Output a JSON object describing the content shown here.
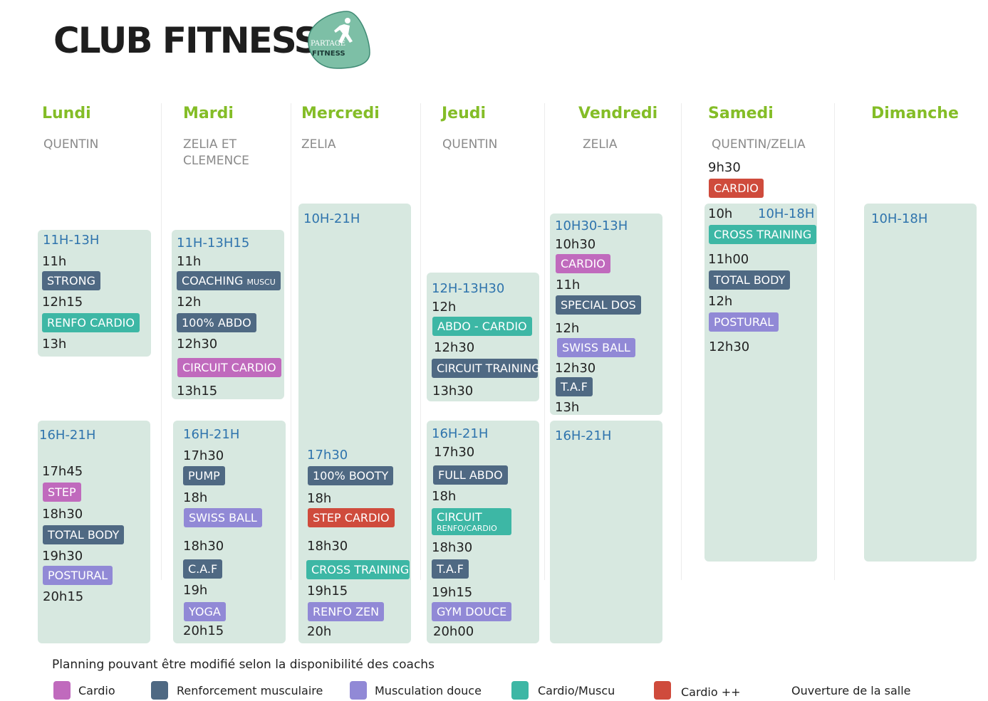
{
  "header": {
    "title": "CLUB FITNESS",
    "logo_text_1": "PARTAGE",
    "logo_text_2": "FITNESS",
    "logo_color": "#7dbfa6"
  },
  "days": {
    "lundi": {
      "name": "Lundi",
      "coach": "QUENTIN"
    },
    "mardi": {
      "name": "Mardi",
      "coach": "ZELIA ET CLEMENCE"
    },
    "mercredi": {
      "name": "Mercredi",
      "coach": "ZELIA"
    },
    "jeudi": {
      "name": "Jeudi",
      "coach": "QUENTIN"
    },
    "vendredi": {
      "name": "Vendredi",
      "coach": "ZELIA"
    },
    "samedi": {
      "name": "Samedi",
      "coach": "QUENTIN/ZELIA"
    },
    "dimanche": {
      "name": "Dimanche"
    }
  },
  "lundi": {
    "am": {
      "hours": "11H-13H",
      "t1": "11h",
      "c1": "STRONG",
      "t2": "12h15",
      "c2": "RENFO CARDIO",
      "t3": "13h"
    },
    "pm": {
      "hours": "16H-21H",
      "t1": "17h45",
      "c1": "STEP",
      "t2": "18h30",
      "c2": "TOTAL BODY",
      "t3": "19h30",
      "c3": "POSTURAL",
      "t4": "20h15"
    }
  },
  "mardi": {
    "am": {
      "hours": "11H-13H15",
      "t1": "11h",
      "c1": "COACHING",
      "c1_small": "MUSCU",
      "t2": "12h",
      "c2": "100% ABDO",
      "t3": "12h30",
      "c3": "CIRCUIT CARDIO",
      "t4": "13h15"
    },
    "pm": {
      "hours": "16H-21H",
      "t1": "17h30",
      "c1": "PUMP",
      "t2": "18h",
      "c2": "SWISS BALL",
      "t3": "18h30",
      "c3": "C.A.F",
      "t4": "19h",
      "c4": "YOGA",
      "t5": "20h15"
    }
  },
  "mercredi": {
    "hours": "10H-21H",
    "pm": {
      "t1": "17h30",
      "c1": "100% BOOTY",
      "t2": "18h",
      "c2": "STEP CARDIO",
      "t3": "18h30",
      "c3": "CROSS TRAINING",
      "t4": "19h15",
      "c4": "RENFO ZEN",
      "t5": "20h"
    }
  },
  "jeudi": {
    "am": {
      "hours": "12H-13H30",
      "t1": "12h",
      "c1": "ABDO - CARDIO",
      "t2": "12h30",
      "c2": "CIRCUIT TRAINING",
      "t3": "13h30"
    },
    "pm": {
      "hours": "16H-21H",
      "t1": "17h30",
      "c1": "FULL ABDO",
      "t2": "18h",
      "c2_l1": "CIRCUIT",
      "c2_l2": "RENFO/CARDIO",
      "t3": "18h30",
      "c3": "T.A.F",
      "t4": "19h15",
      "c4": "GYM DOUCE",
      "t5": "20h00"
    }
  },
  "vendredi": {
    "am": {
      "hours": "10H30-13H",
      "t1": "10h30",
      "c1": "CARDIO",
      "t2": "11h",
      "c2": "SPECIAL DOS",
      "t3": "12h",
      "c3": "SWISS BALL",
      "t4": "12h30",
      "c4": "T.A.F",
      "t5": "13h"
    },
    "pm": {
      "hours": "16H-21H"
    }
  },
  "samedi": {
    "t0": "9h30",
    "c0": "CARDIO",
    "t1": "10h",
    "hours": "10H-18H",
    "c1": "CROSS TRAINING",
    "t2": "11h00",
    "c2": "TOTAL BODY",
    "t3": "12h",
    "c3": "POSTURAL",
    "t4": "12h30"
  },
  "dimanche": {
    "hours": "10H-18H"
  },
  "footer": {
    "note": "Planning pouvant être modifié selon la disponibilité des coachs",
    "legend": [
      {
        "label": "Cardio",
        "color": "#c06abd"
      },
      {
        "label": "Renforcement musculaire",
        "color": "#4f6983"
      },
      {
        "label": "Musculation douce",
        "color": "#9189d6"
      },
      {
        "label": "Cardio/Muscu",
        "color": "#3db7a5"
      },
      {
        "label": "Cardio ++",
        "color": "#cf4b3c"
      }
    ],
    "opening_label": "Ouverture de la salle"
  }
}
